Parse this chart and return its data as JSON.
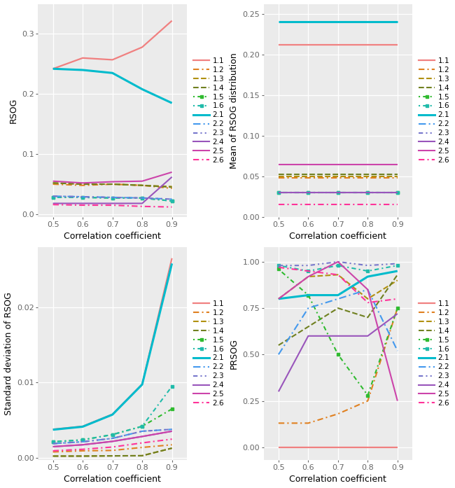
{
  "x": [
    0.5,
    0.6,
    0.7,
    0.8,
    0.9
  ],
  "series_labels": [
    "1.1",
    "1.2",
    "1.3",
    "1.4",
    "1.5",
    "1.6",
    "2.1",
    "2.2",
    "2.3",
    "2.4",
    "2.5",
    "2.6"
  ],
  "colors": {
    "1.1": "#F08080",
    "1.2": "#E08020",
    "1.3": "#B09010",
    "1.4": "#708020",
    "1.5": "#30BB30",
    "1.6": "#20BBAA",
    "2.1": "#00BBCC",
    "2.2": "#4499EE",
    "2.3": "#7777CC",
    "2.4": "#9955BB",
    "2.5": "#CC44AA",
    "2.6": "#FF3399"
  },
  "rsog": {
    "1.1": [
      0.242,
      0.26,
      0.257,
      0.278,
      0.322
    ],
    "1.2": [
      0.05,
      0.048,
      0.05,
      0.048,
      0.043
    ],
    "1.3": [
      0.052,
      0.05,
      0.05,
      0.048,
      0.046
    ],
    "1.4": [
      0.052,
      0.05,
      0.05,
      0.048,
      0.045
    ],
    "1.5": [
      0.028,
      0.028,
      0.027,
      0.027,
      0.022
    ],
    "1.6": [
      0.028,
      0.028,
      0.027,
      0.027,
      0.022
    ],
    "2.1": [
      0.242,
      0.24,
      0.235,
      0.208,
      0.185
    ],
    "2.2": [
      0.03,
      0.029,
      0.028,
      0.027,
      0.025
    ],
    "2.3": [
      0.03,
      0.029,
      0.028,
      0.027,
      0.025
    ],
    "2.4": [
      0.018,
      0.018,
      0.018,
      0.018,
      0.062
    ],
    "2.5": [
      0.055,
      0.052,
      0.054,
      0.055,
      0.07
    ],
    "2.6": [
      0.016,
      0.015,
      0.015,
      0.013,
      0.012
    ]
  },
  "mean_rsog": {
    "1.1": [
      0.212,
      0.212,
      0.212,
      0.212,
      0.212
    ],
    "1.2": [
      0.048,
      0.048,
      0.048,
      0.048,
      0.048
    ],
    "1.3": [
      0.05,
      0.05,
      0.05,
      0.05,
      0.05
    ],
    "1.4": [
      0.053,
      0.053,
      0.053,
      0.053,
      0.053
    ],
    "1.5": [
      0.03,
      0.03,
      0.03,
      0.03,
      0.03
    ],
    "1.6": [
      0.03,
      0.03,
      0.03,
      0.03,
      0.03
    ],
    "2.1": [
      0.24,
      0.24,
      0.24,
      0.24,
      0.24
    ],
    "2.2": [
      0.03,
      0.03,
      0.03,
      0.03,
      0.03
    ],
    "2.3": [
      0.03,
      0.03,
      0.03,
      0.03,
      0.03
    ],
    "2.4": [
      0.03,
      0.03,
      0.03,
      0.03,
      0.03
    ],
    "2.5": [
      0.065,
      0.065,
      0.065,
      0.065,
      0.065
    ],
    "2.6": [
      0.016,
      0.016,
      0.016,
      0.016,
      0.016
    ]
  },
  "std_rsog": {
    "1.1": [
      0.0038,
      0.0042,
      0.0058,
      0.0098,
      0.0265
    ],
    "1.2": [
      0.0008,
      0.00095,
      0.001,
      0.0014,
      0.00175
    ],
    "1.3": [
      0.00025,
      0.00025,
      0.00028,
      0.0003,
      0.0013
    ],
    "1.4": [
      0.00025,
      0.00025,
      0.00028,
      0.0003,
      0.0013
    ],
    "1.5": [
      0.00215,
      0.0024,
      0.0031,
      0.0042,
      0.0065
    ],
    "1.6": [
      0.00215,
      0.0024,
      0.0031,
      0.0042,
      0.0095
    ],
    "2.1": [
      0.00375,
      0.00415,
      0.00575,
      0.00975,
      0.0258
    ],
    "2.2": [
      0.0019,
      0.00215,
      0.0026,
      0.00355,
      0.0038
    ],
    "2.3": [
      0.0019,
      0.00215,
      0.0026,
      0.00355,
      0.0038
    ],
    "2.4": [
      0.0015,
      0.00175,
      0.0022,
      0.00285,
      0.00355
    ],
    "2.5": [
      0.0015,
      0.00175,
      0.0022,
      0.00285,
      0.00355
    ],
    "2.6": [
      0.00095,
      0.00115,
      0.00145,
      0.002,
      0.0025
    ]
  },
  "prsog": {
    "1.1": [
      0.0,
      0.0,
      0.0,
      0.0,
      0.0
    ],
    "1.2": [
      0.13,
      0.13,
      0.18,
      0.25,
      0.75
    ],
    "1.3": [
      0.8,
      0.92,
      0.93,
      0.8,
      0.9
    ],
    "1.4": [
      0.55,
      0.65,
      0.75,
      0.7,
      0.93
    ],
    "1.5": [
      0.96,
      0.82,
      0.5,
      0.28,
      0.75
    ],
    "1.6": [
      0.98,
      0.95,
      0.98,
      0.95,
      0.98
    ],
    "2.1": [
      0.8,
      0.82,
      0.82,
      0.92,
      0.95
    ],
    "2.2": [
      0.5,
      0.75,
      0.8,
      0.85,
      0.52
    ],
    "2.3": [
      0.98,
      0.98,
      1.0,
      0.98,
      0.99
    ],
    "2.4": [
      0.3,
      0.6,
      0.6,
      0.6,
      0.72
    ],
    "2.5": [
      0.8,
      0.92,
      1.0,
      0.85,
      0.25
    ],
    "2.6": [
      0.97,
      0.95,
      0.93,
      0.78,
      0.8
    ]
  },
  "bg_color": "#EBEBEB",
  "grid_color": "white"
}
